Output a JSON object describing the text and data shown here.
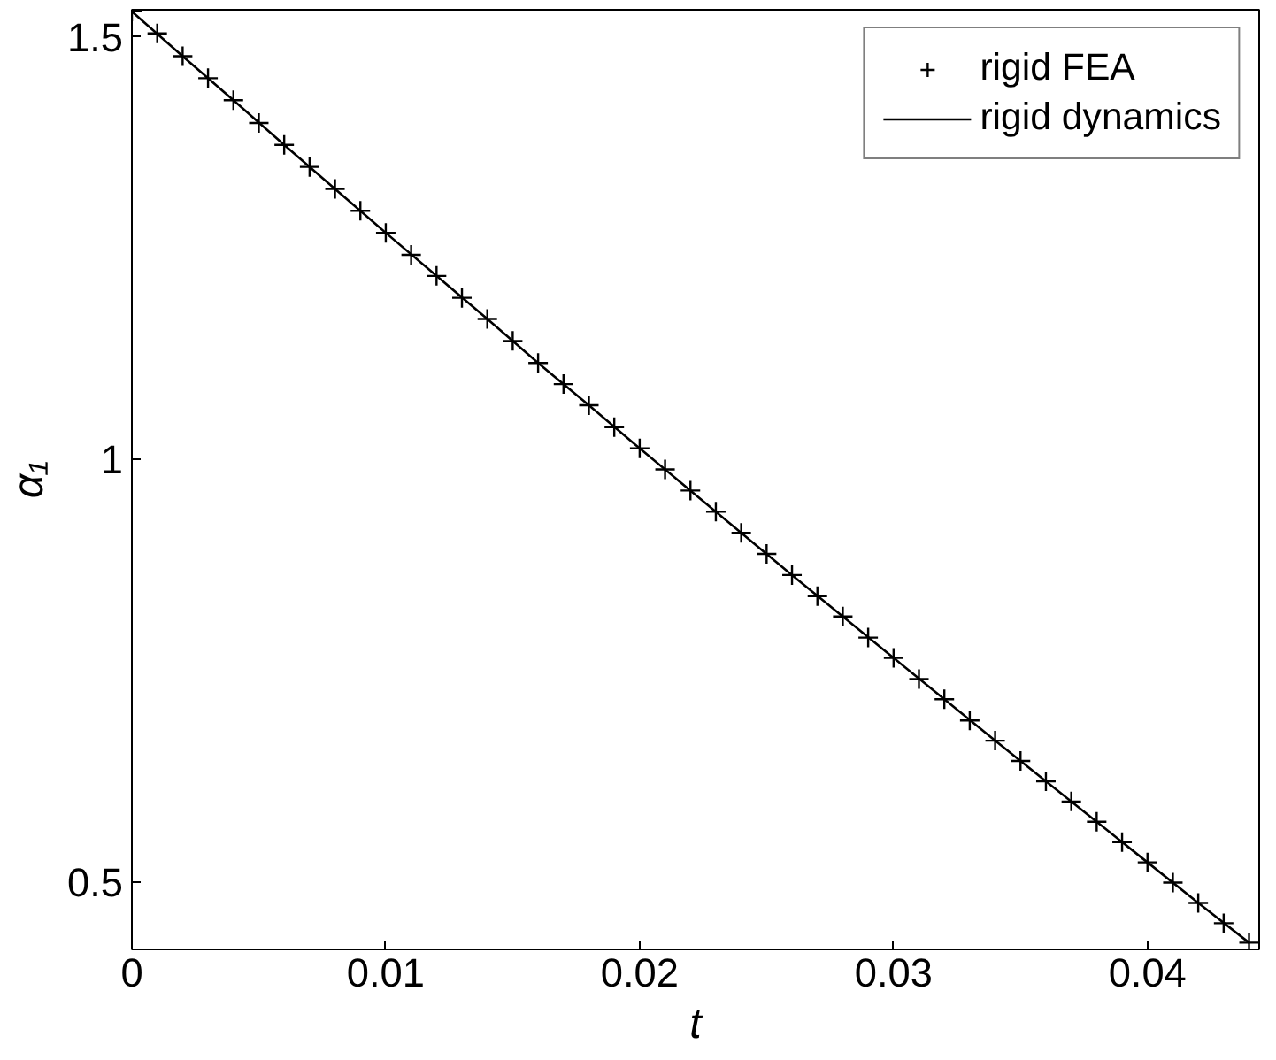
{
  "chart_data": {
    "type": "scatter",
    "xlabel": "t",
    "ylabel": "α₁",
    "xlim": [
      0,
      0.0444
    ],
    "ylim": [
      0.42,
      1.532
    ],
    "xticks": [
      0,
      0.01,
      0.02,
      0.03,
      0.04
    ],
    "yticks": [
      0.5,
      1,
      1.5
    ],
    "grid": false,
    "legend": "top right",
    "series": [
      {
        "name": "rigid FEA",
        "marker": "cross",
        "color": "#000000",
        "x": [
          0,
          0.001,
          0.002,
          0.003,
          0.004,
          0.005,
          0.006,
          0.007,
          0.008,
          0.009,
          0.01,
          0.011,
          0.012,
          0.013,
          0.014,
          0.015,
          0.016,
          0.017,
          0.018,
          0.019,
          0.02,
          0.021,
          0.022,
          0.023,
          0.024,
          0.025,
          0.026,
          0.027,
          0.028,
          0.029,
          0.03,
          0.031,
          0.032,
          0.033,
          0.034,
          0.035,
          0.036,
          0.037,
          0.038,
          0.039,
          0.04,
          0.041,
          0.042,
          0.043,
          0.044
        ],
        "values": [
          1.53,
          1.504,
          1.477,
          1.451,
          1.425,
          1.398,
          1.372,
          1.346,
          1.32,
          1.294,
          1.268,
          1.242,
          1.217,
          1.191,
          1.166,
          1.14,
          1.114,
          1.089,
          1.064,
          1.038,
          1.013,
          0.988,
          0.963,
          0.938,
          0.913,
          0.888,
          0.863,
          0.838,
          0.814,
          0.789,
          0.765,
          0.74,
          0.716,
          0.691,
          0.667,
          0.643,
          0.619,
          0.595,
          0.571,
          0.547,
          0.523,
          0.499,
          0.475,
          0.451,
          0.428
        ]
      },
      {
        "name": "rigid dynamics",
        "type": "line",
        "line_style": "solid",
        "color": "#000000",
        "x": [
          0,
          0.002,
          0.004,
          0.006,
          0.008,
          0.01,
          0.012,
          0.014,
          0.016,
          0.018,
          0.02,
          0.022,
          0.024,
          0.026,
          0.028,
          0.03,
          0.032,
          0.034,
          0.036,
          0.038,
          0.04,
          0.042,
          0.044
        ],
        "values": [
          1.53,
          1.477,
          1.425,
          1.372,
          1.32,
          1.268,
          1.217,
          1.166,
          1.114,
          1.064,
          1.013,
          0.963,
          0.913,
          0.863,
          0.814,
          0.765,
          0.716,
          0.667,
          0.619,
          0.571,
          0.523,
          0.475,
          0.428
        ]
      }
    ]
  }
}
